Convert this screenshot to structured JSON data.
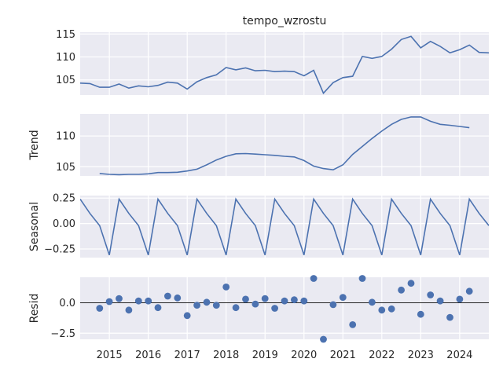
{
  "chart_data": {
    "type": "line",
    "title": "tempo_wzrostu",
    "colors": {
      "series": "#4c72b0",
      "panel_bg": "#eaeaf2",
      "grid": "#ffffff"
    },
    "grid": true,
    "x_start_year": 2014.25,
    "x_step_years": 0.25,
    "xlim": [
      2014.25,
      2024.75
    ],
    "x_tick_labels": [
      "2015",
      "2016",
      "2017",
      "2018",
      "2019",
      "2020",
      "2021",
      "2022",
      "2023",
      "2024"
    ],
    "x_tick_values": [
      2015,
      2016,
      2017,
      2018,
      2019,
      2020,
      2021,
      2022,
      2023,
      2024
    ],
    "panels": [
      {
        "name": "observed",
        "ylabel": "",
        "kind": "line",
        "ylim": [
          101.7,
          115.4
        ],
        "yticks": [
          105,
          110,
          115
        ],
        "ytick_labels": [
          "105",
          "110",
          "115"
        ],
        "values": [
          104.3,
          104.2,
          103.4,
          103.4,
          104.1,
          103.2,
          103.7,
          103.5,
          103.8,
          104.5,
          104.3,
          103.0,
          104.6,
          105.5,
          106.1,
          107.7,
          107.2,
          107.6,
          107.0,
          107.1,
          106.8,
          106.9,
          106.8,
          105.9,
          107.1,
          102.1,
          104.4,
          105.5,
          105.8,
          110.1,
          109.7,
          110.1,
          111.7,
          113.8,
          114.5,
          112.0,
          113.4,
          112.3,
          110.9,
          111.6,
          112.6,
          111.0,
          110.9
        ]
      },
      {
        "name": "trend",
        "ylabel": "Trend",
        "kind": "line",
        "ylim": [
          103.5,
          113.6
        ],
        "yticks": [
          105,
          110
        ],
        "ytick_labels": [
          "105",
          "110"
        ],
        "values": [
          null,
          null,
          103.9,
          103.75,
          103.7,
          103.75,
          103.75,
          103.85,
          104.05,
          104.05,
          104.1,
          104.3,
          104.6,
          105.3,
          106.1,
          106.7,
          107.1,
          107.15,
          107.05,
          106.95,
          106.85,
          106.7,
          106.6,
          106.0,
          105.1,
          104.7,
          104.5,
          105.3,
          107.0,
          108.3,
          109.6,
          110.8,
          111.9,
          112.7,
          113.1,
          113.1,
          112.4,
          111.9,
          111.75,
          111.55,
          111.35,
          null,
          null
        ]
      },
      {
        "name": "seasonal",
        "ylabel": "Seasonal",
        "kind": "line",
        "ylim": [
          -0.335,
          0.275
        ],
        "yticks": [
          0.25,
          0.0,
          -0.25
        ],
        "ytick_labels": [
          "0.25",
          "0.00",
          "−0.25"
        ],
        "values": [
          0.24,
          0.1,
          -0.02,
          -0.31,
          0.24,
          0.1,
          -0.02,
          -0.31,
          0.24,
          0.1,
          -0.02,
          -0.31,
          0.24,
          0.1,
          -0.02,
          -0.31,
          0.24,
          0.1,
          -0.02,
          -0.31,
          0.24,
          0.1,
          -0.02,
          -0.31,
          0.24,
          0.1,
          -0.02,
          -0.31,
          0.24,
          0.1,
          -0.02,
          -0.31,
          0.24,
          0.1,
          -0.02,
          -0.31,
          0.24,
          0.1,
          -0.02,
          -0.31,
          0.24,
          0.1,
          -0.02
        ]
      },
      {
        "name": "resid",
        "ylabel": "Resid",
        "kind": "scatter",
        "ylim": [
          -3.0,
          2.1
        ],
        "yticks": [
          0.0,
          -2.5
        ],
        "ytick_labels": [
          "0.0",
          "−2.5"
        ],
        "zero_line": true,
        "values": [
          null,
          null,
          -0.45,
          0.1,
          0.35,
          -0.6,
          0.15,
          0.15,
          -0.4,
          0.55,
          0.4,
          -1.05,
          -0.2,
          0.05,
          -0.2,
          1.3,
          -0.4,
          0.3,
          -0.1,
          0.35,
          -0.45,
          0.15,
          0.25,
          0.15,
          2.0,
          -3.0,
          -0.15,
          0.45,
          -1.8,
          2.0,
          0.05,
          -0.6,
          -0.5,
          1.05,
          1.6,
          -0.95,
          0.65,
          0.15,
          -1.2,
          0.3,
          0.95,
          null,
          null
        ]
      }
    ]
  }
}
